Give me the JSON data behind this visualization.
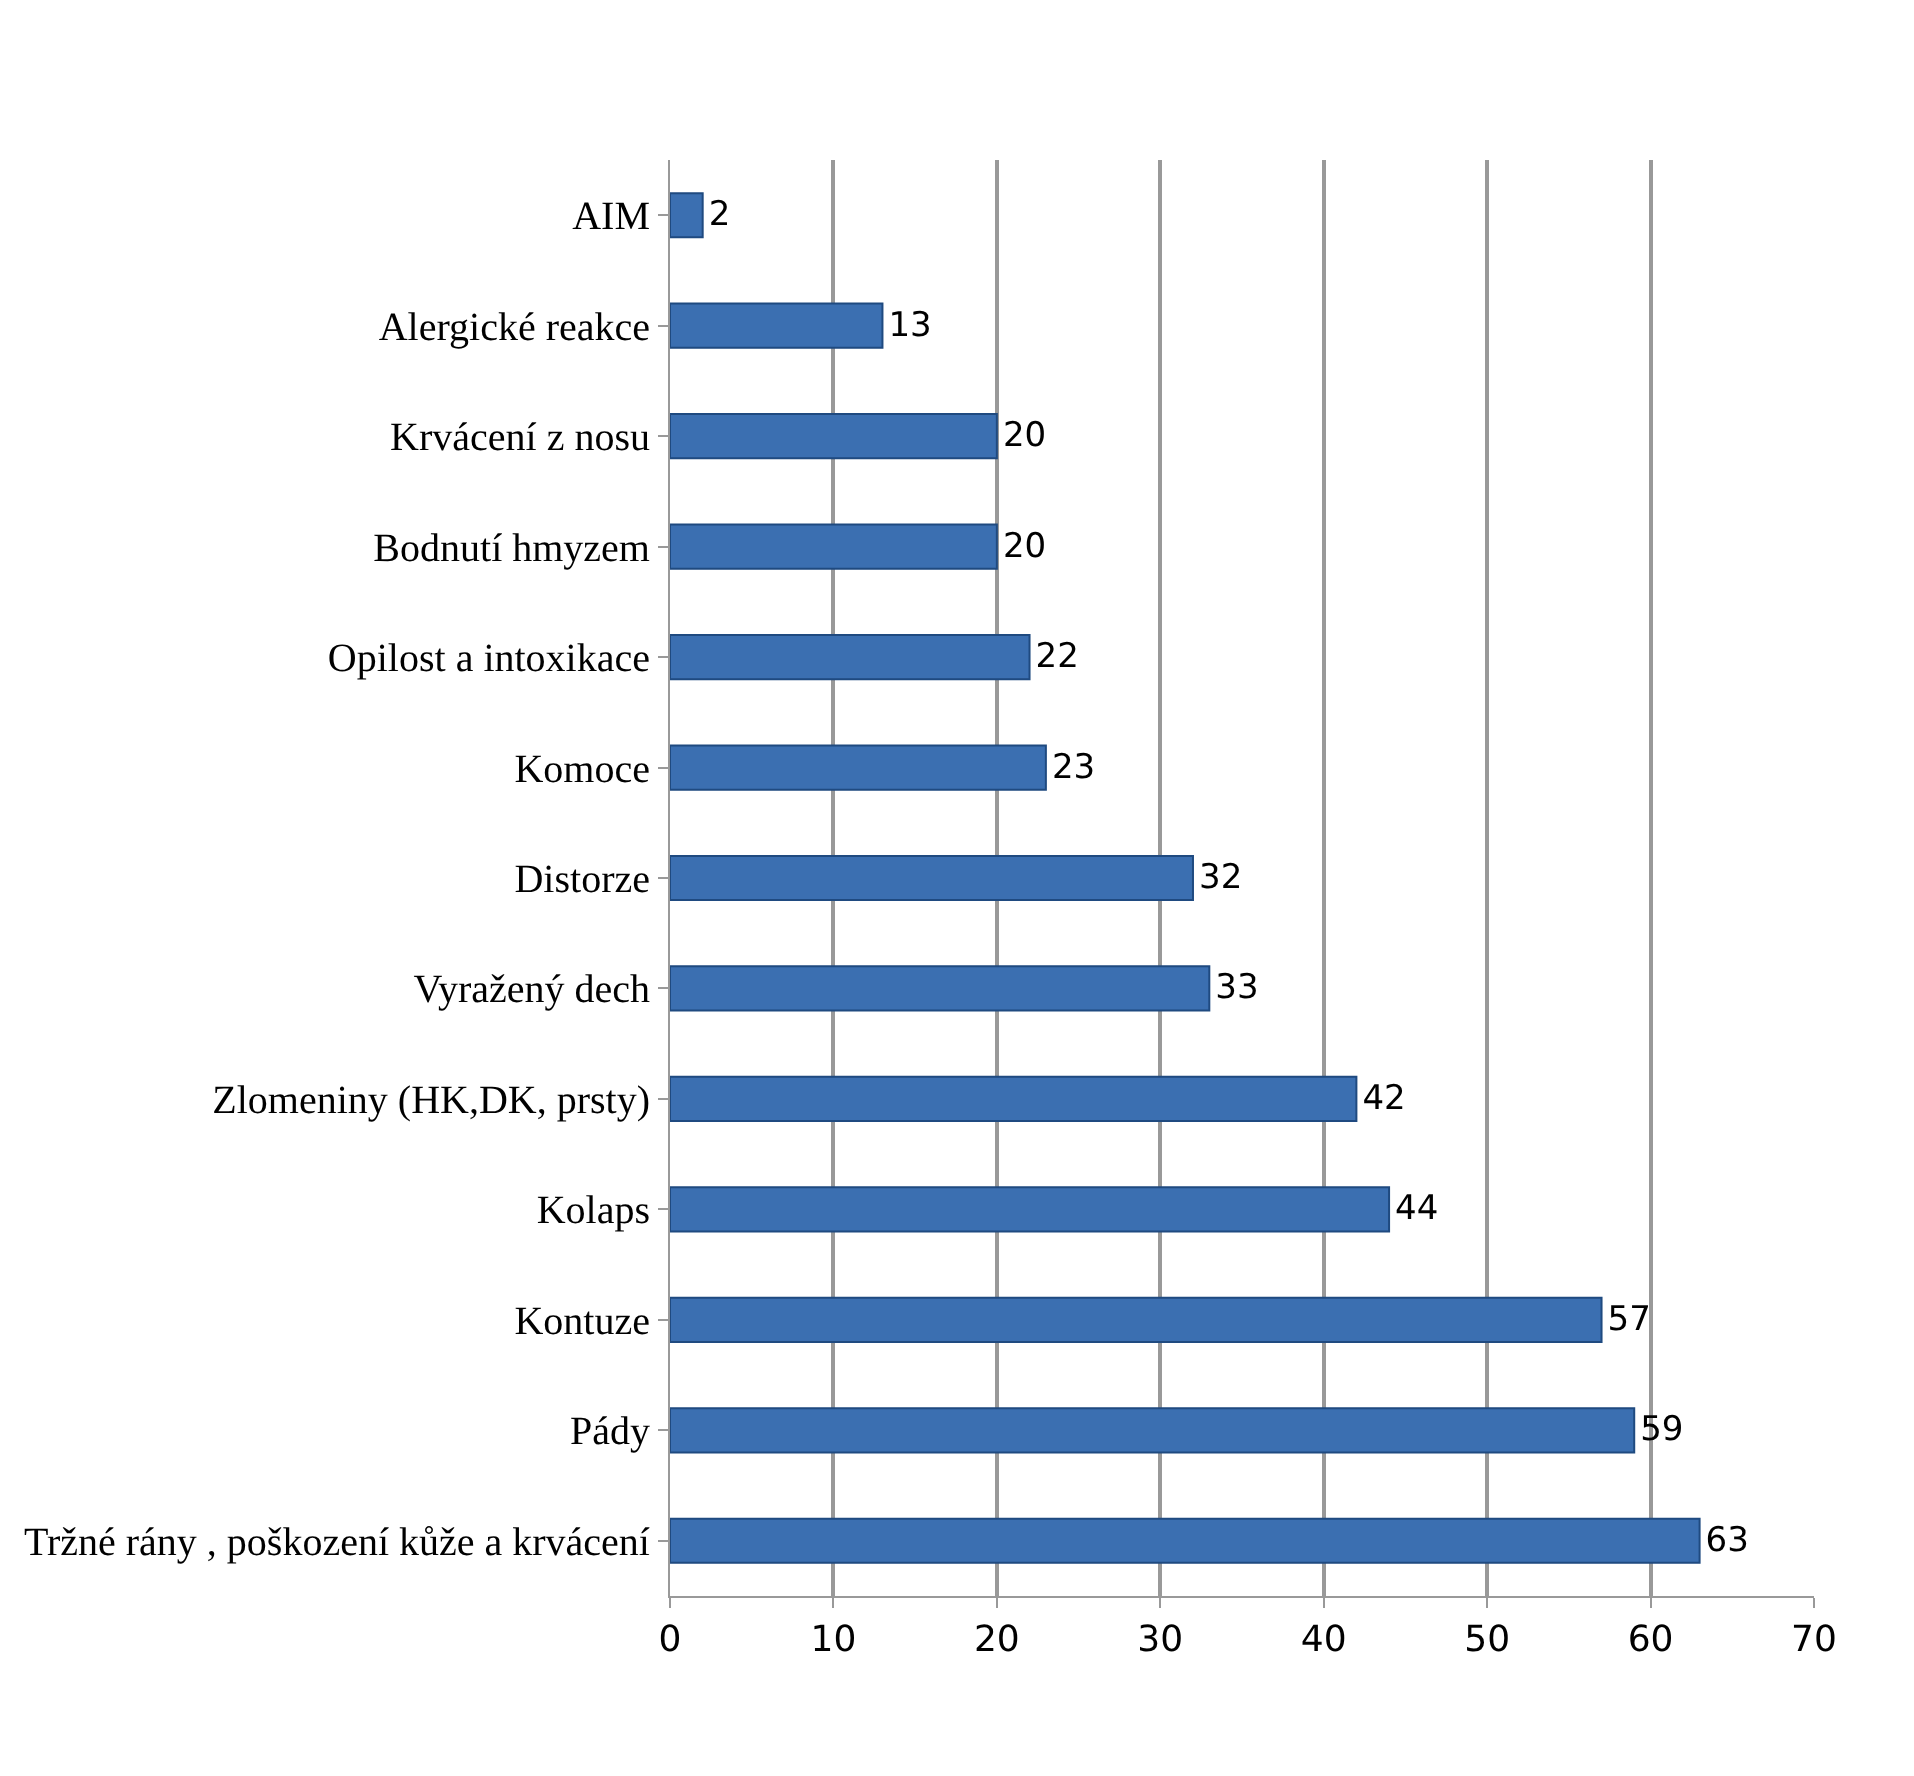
{
  "chart_data": {
    "type": "bar",
    "orientation": "horizontal",
    "categories": [
      "AIM",
      "Alergické reakce",
      "Krvácení z nosu",
      "Bodnutí hmyzem",
      "Opilost a intoxikace",
      "Komoce",
      "Distorze",
      "Vyražený dech",
      "Zlomeniny (HK,DK, prsty)",
      "Kolaps",
      "Kontuze",
      "Pády",
      "Tržné rány , poškození kůže a krvácení"
    ],
    "values": [
      2,
      13,
      20,
      20,
      22,
      23,
      32,
      33,
      42,
      44,
      57,
      59,
      63
    ],
    "color": "#3b6fb1",
    "xlim": [
      0,
      70
    ],
    "xticks": [
      0,
      10,
      20,
      30,
      40,
      50,
      60,
      70
    ],
    "grid": "x",
    "data_labels": true
  }
}
